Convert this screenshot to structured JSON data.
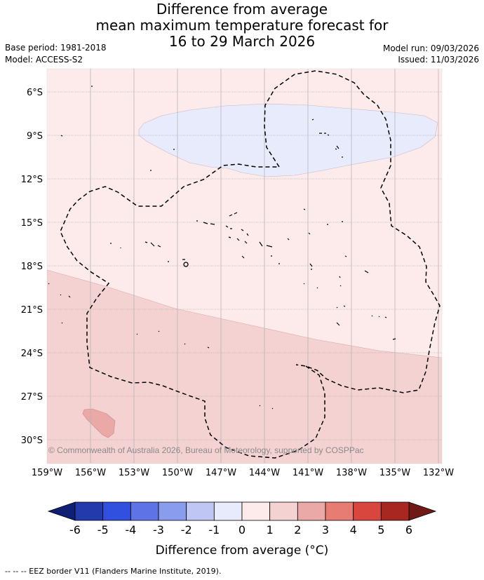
{
  "title": {
    "line1": "Difference from average",
    "line2": "mean maximum temperature forecast for",
    "line3": "16 to 29 March 2026"
  },
  "meta": {
    "base_period": "Base period: 1981-2018",
    "model": "Model: ACCESS-S2",
    "model_run": "Model run: 09/03/2026",
    "issued": "Issued: 11/03/2026"
  },
  "map": {
    "lat_labels": [
      "6°S",
      "9°S",
      "12°S",
      "15°S",
      "18°S",
      "21°S",
      "24°S",
      "27°S",
      "30°S"
    ],
    "lon_labels": [
      "159°W",
      "156°W",
      "153°W",
      "150°W",
      "147°W",
      "144°W",
      "141°W",
      "138°W",
      "135°W",
      "132°W"
    ],
    "copyright": "© Commonwealth of Australia 2026, Bureau of Meteorology, supported by COSPPac"
  },
  "colorbar": {
    "ticks": [
      "-6",
      "-5",
      "-4",
      "-3",
      "-2",
      "-1",
      "0",
      "1",
      "2",
      "3",
      "4",
      "5",
      "6"
    ],
    "colors": [
      "#233aad",
      "#3150e0",
      "#5e74e6",
      "#8a9ced",
      "#bfc6f4",
      "#e8ebfc",
      "#fcebea",
      "#f4d2d2",
      "#eaa8a6",
      "#e67c72",
      "#d8463d",
      "#a82720"
    ],
    "under_color": "#0f1f73",
    "over_color": "#6f1a15",
    "title": "Difference from average (°C)"
  },
  "footer": {
    "legend_text": "--  --  -- EEZ border V11 (Flanders Marine Institute, 2019)."
  }
}
